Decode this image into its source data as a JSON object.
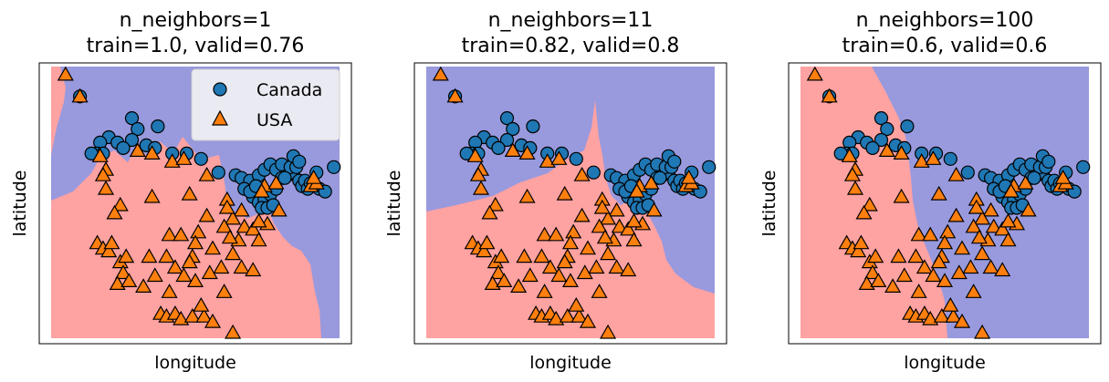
{
  "colors": {
    "canada_region": "#9999dd",
    "usa_region": "#ffa2a2",
    "canada_marker": "#1f77b4",
    "usa_marker": "#ff7f0e",
    "marker_edge": "#000000",
    "legend_bg": "#eaeaf2"
  },
  "chart_data": [
    {
      "type": "scatter",
      "title": "n_neighbors=1\ntrain=1.0, valid=0.76",
      "title_lines": [
        "n_neighbors=1",
        "train=1.0, valid=0.76"
      ],
      "xlabel": "longitude",
      "ylabel": "latitude",
      "ticks": "hidden",
      "legend": {
        "placement": "top-right",
        "entries": [
          {
            "label": "Canada",
            "marker": "circle"
          },
          {
            "label": "USA",
            "marker": "triangle"
          }
        ]
      },
      "decision_regions": "Canada (blue) upper part, USA (red) lower-left; jagged boundary"
    },
    {
      "type": "scatter",
      "title": "n_neighbors=11\ntrain=0.82, valid=0.8",
      "title_lines": [
        "n_neighbors=11",
        "train=0.82, valid=0.8"
      ],
      "xlabel": "longitude",
      "ylabel": "latitude",
      "ticks": "hidden",
      "decision_regions": "Canada (blue) upper and right, USA (red) lower-left; smoother boundary"
    },
    {
      "type": "scatter",
      "title": "n_neighbors=100\ntrain=0.6, valid=0.6",
      "title_lines": [
        "n_neighbors=100",
        "train=0.6, valid=0.6"
      ],
      "xlabel": "longitude",
      "ylabel": "latitude",
      "ticks": "hidden",
      "decision_regions": "USA (red) left portion, Canada (blue) right portion; nearly vertical boundary"
    }
  ],
  "scatter_points": {
    "note": "Same points in every subplot (axes units unlabeled; values in normalized axis coords 0-1)",
    "canada": [
      [
        0.1,
        0.89
      ],
      [
        0.28,
        0.81
      ],
      [
        0.3,
        0.77
      ],
      [
        0.37,
        0.78
      ],
      [
        0.2,
        0.74
      ],
      [
        0.23,
        0.72
      ],
      [
        0.28,
        0.73
      ],
      [
        0.33,
        0.71
      ],
      [
        0.17,
        0.72
      ],
      [
        0.16,
        0.68
      ],
      [
        0.18,
        0.68
      ],
      [
        0.14,
        0.68
      ],
      [
        0.25,
        0.7
      ],
      [
        0.36,
        0.7
      ],
      [
        0.42,
        0.68
      ],
      [
        0.47,
        0.68
      ],
      [
        0.52,
        0.66
      ],
      [
        0.58,
        0.61
      ],
      [
        0.64,
        0.6
      ],
      [
        0.66,
        0.59
      ],
      [
        0.69,
        0.58
      ],
      [
        0.72,
        0.6
      ],
      [
        0.74,
        0.62
      ],
      [
        0.76,
        0.64
      ],
      [
        0.78,
        0.62
      ],
      [
        0.8,
        0.59
      ],
      [
        0.82,
        0.6
      ],
      [
        0.84,
        0.61
      ],
      [
        0.86,
        0.58
      ],
      [
        0.87,
        0.56
      ],
      [
        0.88,
        0.58
      ],
      [
        0.89,
        0.55
      ],
      [
        0.9,
        0.57
      ],
      [
        0.92,
        0.61
      ],
      [
        0.8,
        0.64
      ],
      [
        0.83,
        0.63
      ],
      [
        0.85,
        0.63
      ],
      [
        0.7,
        0.52
      ],
      [
        0.72,
        0.5
      ],
      [
        0.74,
        0.51
      ],
      [
        0.76,
        0.53
      ],
      [
        0.78,
        0.55
      ],
      [
        0.73,
        0.48
      ],
      [
        0.75,
        0.48
      ],
      [
        0.77,
        0.49
      ],
      [
        0.67,
        0.55
      ],
      [
        0.69,
        0.54
      ],
      [
        0.71,
        0.56
      ],
      [
        0.93,
        0.55
      ],
      [
        0.95,
        0.54
      ],
      [
        0.98,
        0.63
      ],
      [
        0.84,
        0.67
      ],
      [
        0.86,
        0.65
      ],
      [
        0.81,
        0.59
      ]
    ],
    "usa": [
      [
        0.05,
        0.97
      ],
      [
        0.1,
        0.89
      ],
      [
        0.17,
        0.67
      ],
      [
        0.19,
        0.62
      ],
      [
        0.18,
        0.6
      ],
      [
        0.3,
        0.69
      ],
      [
        0.35,
        0.68
      ],
      [
        0.42,
        0.65
      ],
      [
        0.46,
        0.66
      ],
      [
        0.54,
        0.6
      ],
      [
        0.19,
        0.55
      ],
      [
        0.24,
        0.49
      ],
      [
        0.22,
        0.46
      ],
      [
        0.35,
        0.52
      ],
      [
        0.48,
        0.53
      ],
      [
        0.61,
        0.51
      ],
      [
        0.66,
        0.47
      ],
      [
        0.63,
        0.44
      ],
      [
        0.6,
        0.41
      ],
      [
        0.67,
        0.41
      ],
      [
        0.7,
        0.4
      ],
      [
        0.65,
        0.36
      ],
      [
        0.72,
        0.36
      ],
      [
        0.75,
        0.42
      ],
      [
        0.79,
        0.47
      ],
      [
        0.54,
        0.45
      ],
      [
        0.61,
        0.48
      ],
      [
        0.51,
        0.39
      ],
      [
        0.5,
        0.35
      ],
      [
        0.49,
        0.3
      ],
      [
        0.56,
        0.33
      ],
      [
        0.63,
        0.31
      ],
      [
        0.59,
        0.26
      ],
      [
        0.66,
        0.26
      ],
      [
        0.7,
        0.25
      ],
      [
        0.16,
        0.35
      ],
      [
        0.18,
        0.33
      ],
      [
        0.2,
        0.32
      ],
      [
        0.21,
        0.35
      ],
      [
        0.24,
        0.28
      ],
      [
        0.26,
        0.3
      ],
      [
        0.25,
        0.24
      ],
      [
        0.23,
        0.2
      ],
      [
        0.27,
        0.21
      ],
      [
        0.34,
        0.3
      ],
      [
        0.36,
        0.23
      ],
      [
        0.32,
        0.19
      ],
      [
        0.41,
        0.38
      ],
      [
        0.45,
        0.38
      ],
      [
        0.48,
        0.28
      ],
      [
        0.55,
        0.24
      ],
      [
        0.5,
        0.21
      ],
      [
        0.4,
        0.3
      ],
      [
        0.43,
        0.26
      ],
      [
        0.46,
        0.23
      ],
      [
        0.41,
        0.17
      ],
      [
        0.38,
        0.09
      ],
      [
        0.4,
        0.08
      ],
      [
        0.43,
        0.09
      ],
      [
        0.45,
        0.07
      ],
      [
        0.49,
        0.08
      ],
      [
        0.53,
        0.08
      ],
      [
        0.56,
        0.06
      ],
      [
        0.52,
        0.12
      ],
      [
        0.6,
        0.17
      ],
      [
        0.63,
        0.02
      ],
      [
        0.74,
        0.56
      ],
      [
        0.78,
        0.57
      ],
      [
        0.9,
        0.56
      ],
      [
        0.92,
        0.57
      ],
      [
        0.91,
        0.59
      ],
      [
        0.73,
        0.54
      ],
      [
        0.72,
        0.43
      ],
      [
        0.62,
        0.37
      ]
    ]
  }
}
